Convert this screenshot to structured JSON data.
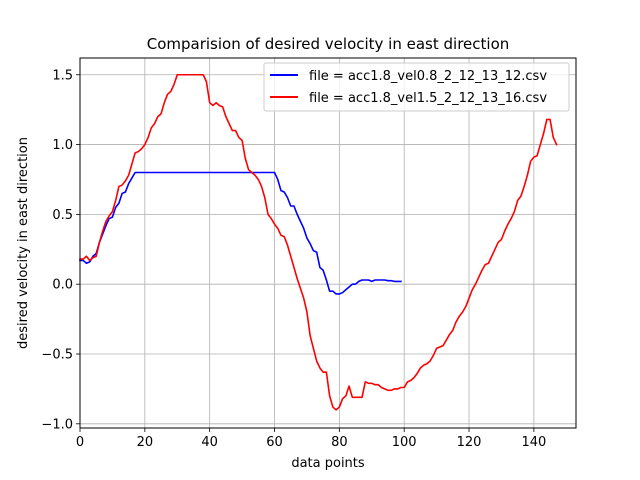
{
  "chart_data": {
    "type": "line",
    "title": "Comparision of desired velocity in east direction",
    "xlabel": "data points",
    "ylabel": "desired velocity in east direction",
    "xlim": [
      0,
      153
    ],
    "ylim": [
      -1.03,
      1.62
    ],
    "grid": true,
    "legend_position": "top-right",
    "xticks": [
      0,
      20,
      40,
      60,
      80,
      100,
      120,
      140
    ],
    "yticks": [
      -1.0,
      -0.5,
      0.0,
      0.5,
      1.0,
      1.5
    ],
    "xtick_labels": [
      "0",
      "20",
      "40",
      "60",
      "80",
      "100",
      "120",
      "140"
    ],
    "ytick_labels": [
      "−1.0",
      "−0.5",
      "0.0",
      "0.5",
      "1.0",
      "1.5"
    ],
    "series": [
      {
        "name": "file = acc1.8_vel0.8_2_12_13_12.csv",
        "color": "#0000ff",
        "x": [
          0,
          1,
          2,
          3,
          4,
          5,
          6,
          7,
          8,
          9,
          10,
          11,
          12,
          13,
          14,
          15,
          16,
          17,
          18,
          19,
          20,
          22,
          24,
          26,
          28,
          30,
          32,
          34,
          36,
          38,
          40,
          42,
          44,
          46,
          48,
          50,
          52,
          54,
          56,
          58,
          60,
          61,
          62,
          63,
          64,
          65,
          66,
          67,
          68,
          69,
          70,
          71,
          72,
          73,
          74,
          75,
          76,
          77,
          78,
          79,
          80,
          81,
          82,
          83,
          84,
          85,
          86,
          87,
          88,
          89,
          90,
          91,
          92,
          93,
          94,
          95,
          96,
          97,
          98,
          99
        ],
        "y": [
          0.17,
          0.17,
          0.15,
          0.16,
          0.2,
          0.22,
          0.3,
          0.36,
          0.42,
          0.47,
          0.48,
          0.55,
          0.58,
          0.65,
          0.66,
          0.72,
          0.76,
          0.8,
          0.8,
          0.8,
          0.8,
          0.8,
          0.8,
          0.8,
          0.8,
          0.8,
          0.8,
          0.8,
          0.8,
          0.8,
          0.8,
          0.8,
          0.8,
          0.8,
          0.8,
          0.8,
          0.8,
          0.8,
          0.8,
          0.8,
          0.8,
          0.75,
          0.67,
          0.66,
          0.62,
          0.56,
          0.56,
          0.5,
          0.45,
          0.4,
          0.33,
          0.29,
          0.24,
          0.23,
          0.12,
          0.1,
          0.03,
          -0.05,
          -0.05,
          -0.07,
          -0.07,
          -0.06,
          -0.04,
          -0.02,
          0.0,
          0.0,
          0.02,
          0.03,
          0.03,
          0.03,
          0.02,
          0.03,
          0.03,
          0.03,
          0.03,
          0.025,
          0.025,
          0.02,
          0.02,
          0.02
        ]
      },
      {
        "name": "file = acc1.8_vel1.5_2_12_13_16.csv",
        "color": "#ff0000",
        "x": [
          0,
          1,
          2,
          3,
          4,
          5,
          6,
          7,
          8,
          9,
          10,
          11,
          12,
          13,
          14,
          15,
          16,
          17,
          18,
          19,
          20,
          21,
          22,
          23,
          24,
          25,
          26,
          27,
          28,
          29,
          30,
          31,
          32,
          33,
          34,
          35,
          36,
          37,
          38,
          39,
          40,
          41,
          42,
          43,
          44,
          45,
          46,
          47,
          48,
          49,
          50,
          51,
          52,
          53,
          54,
          55,
          56,
          57,
          58,
          59,
          60,
          61,
          62,
          63,
          64,
          65,
          66,
          67,
          68,
          69,
          70,
          71,
          72,
          73,
          74,
          75,
          76,
          77,
          78,
          79,
          80,
          81,
          82,
          83,
          84,
          85,
          86,
          87,
          88,
          89,
          90,
          91,
          92,
          93,
          94,
          95,
          96,
          97,
          98,
          99,
          100,
          101,
          102,
          103,
          104,
          105,
          106,
          107,
          108,
          109,
          110,
          111,
          112,
          113,
          114,
          115,
          116,
          117,
          118,
          119,
          120,
          121,
          122,
          123,
          124,
          125,
          126,
          127,
          128,
          129,
          130,
          131,
          132,
          133,
          134,
          135,
          136,
          137,
          138,
          139,
          140,
          141,
          142,
          143,
          144,
          145,
          146,
          147
        ],
        "y": [
          0.18,
          0.18,
          0.2,
          0.17,
          0.19,
          0.2,
          0.3,
          0.38,
          0.45,
          0.49,
          0.52,
          0.6,
          0.7,
          0.71,
          0.74,
          0.78,
          0.86,
          0.94,
          0.95,
          0.97,
          1.0,
          1.05,
          1.12,
          1.15,
          1.2,
          1.22,
          1.3,
          1.36,
          1.38,
          1.43,
          1.5,
          1.5,
          1.5,
          1.5,
          1.5,
          1.5,
          1.5,
          1.5,
          1.5,
          1.45,
          1.3,
          1.28,
          1.3,
          1.28,
          1.27,
          1.2,
          1.15,
          1.1,
          1.1,
          1.05,
          1.03,
          0.9,
          0.82,
          0.8,
          0.78,
          0.75,
          0.7,
          0.62,
          0.5,
          0.47,
          0.43,
          0.4,
          0.35,
          0.34,
          0.28,
          0.2,
          0.12,
          0.04,
          -0.03,
          -0.1,
          -0.2,
          -0.37,
          -0.46,
          -0.55,
          -0.6,
          -0.63,
          -0.63,
          -0.8,
          -0.88,
          -0.9,
          -0.88,
          -0.82,
          -0.8,
          -0.73,
          -0.81,
          -0.81,
          -0.81,
          -0.81,
          -0.7,
          -0.71,
          -0.71,
          -0.72,
          -0.72,
          -0.74,
          -0.75,
          -0.76,
          -0.76,
          -0.75,
          -0.75,
          -0.74,
          -0.74,
          -0.7,
          -0.69,
          -0.67,
          -0.64,
          -0.6,
          -0.58,
          -0.57,
          -0.55,
          -0.51,
          -0.46,
          -0.45,
          -0.44,
          -0.4,
          -0.36,
          -0.33,
          -0.27,
          -0.23,
          -0.2,
          -0.16,
          -0.1,
          -0.04,
          0.0,
          0.05,
          0.1,
          0.14,
          0.15,
          0.2,
          0.25,
          0.3,
          0.32,
          0.38,
          0.43,
          0.47,
          0.52,
          0.6,
          0.63,
          0.7,
          0.78,
          0.88,
          0.91,
          0.92,
          1.0,
          1.08,
          1.18,
          1.18,
          1.05,
          1.0
        ]
      }
    ]
  }
}
